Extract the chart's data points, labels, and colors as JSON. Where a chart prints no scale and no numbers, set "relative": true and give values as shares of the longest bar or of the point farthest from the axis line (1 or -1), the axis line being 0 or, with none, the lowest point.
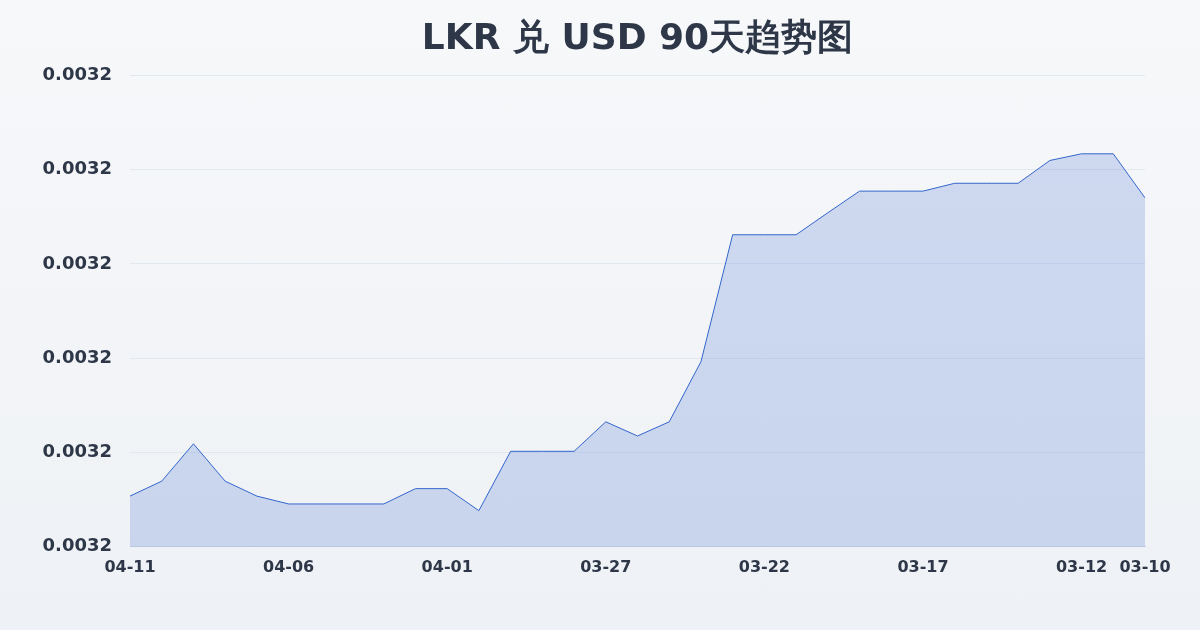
{
  "chart_data": {
    "type": "area",
    "title": "LKR 兑 USD 90天趋势图",
    "categories": [
      "04-11",
      null,
      null,
      null,
      null,
      "04-06",
      null,
      null,
      null,
      null,
      "04-01",
      null,
      null,
      null,
      null,
      "03-27",
      null,
      null,
      null,
      null,
      "03-22",
      null,
      null,
      null,
      null,
      "03-17",
      null,
      null,
      null,
      null,
      "03-12",
      null,
      "03-10"
    ],
    "values": [
      0.129,
      0.167,
      0.262,
      0.167,
      0.129,
      0.109,
      0.109,
      0.109,
      0.109,
      0.148,
      0.148,
      0.092,
      0.243,
      0.243,
      0.243,
      0.318,
      0.282,
      0.318,
      0.471,
      0.794,
      0.794,
      0.794,
      0.85,
      0.905,
      0.905,
      0.905,
      0.925,
      0.925,
      0.925,
      0.983,
      1,
      1,
      0.888
    ],
    "color": "#3366cc",
    "relative": true,
    "annotations": [
      "0.0032",
      "0.0032",
      "0.0032",
      "0.0032",
      "0.0032",
      "0.0032"
    ],
    "grid": "y",
    "marker": "none"
  }
}
